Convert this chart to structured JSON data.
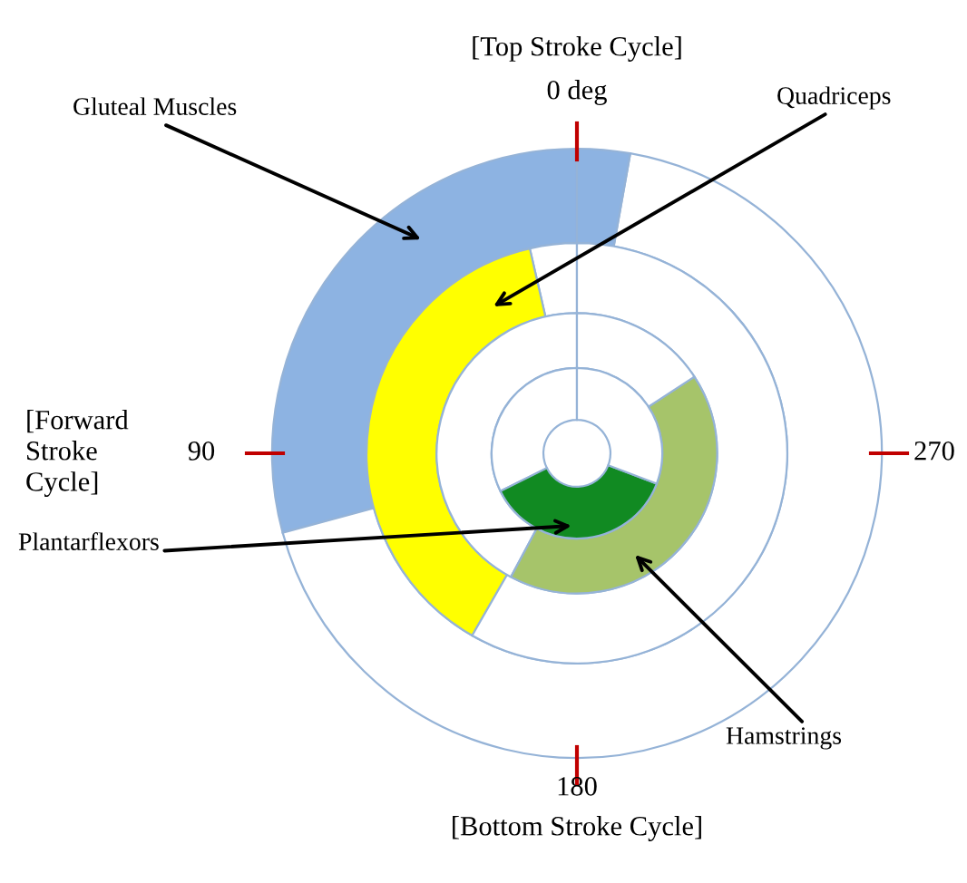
{
  "chart_data": {
    "type": "donut",
    "series": [
      {
        "name": "Gluteal Muscles",
        "values": [
          29.2,
          68.0,
          2.8
        ],
        "colors": [
          "#8db3e2",
          "#ffffff",
          "#8db3e2"
        ]
      },
      {
        "name": "Quadriceps",
        "values": [
          3.6,
          38.1,
          58.3
        ],
        "colors": [
          "#ffffff",
          "#ffff00",
          "#ffffff"
        ]
      },
      {
        "name": "Hamstrings",
        "values": [
          42.2,
          42.0,
          15.8
        ],
        "colors": [
          "#ffffff",
          "#a6c46a",
          "#ffffff"
        ]
      },
      {
        "name": "Plantarflexors",
        "values": [
          32.3,
          36.9,
          30.8
        ],
        "colors": [
          "#ffffff",
          "#118a22",
          "#ffffff"
        ]
      }
    ],
    "annotations": [
      "[Top Stroke Cycle]",
      "0 deg",
      "[Forward\nStroke\nCycle]",
      "90",
      "270",
      "180",
      "[Bottom Stroke Cycle]"
    ]
  }
}
